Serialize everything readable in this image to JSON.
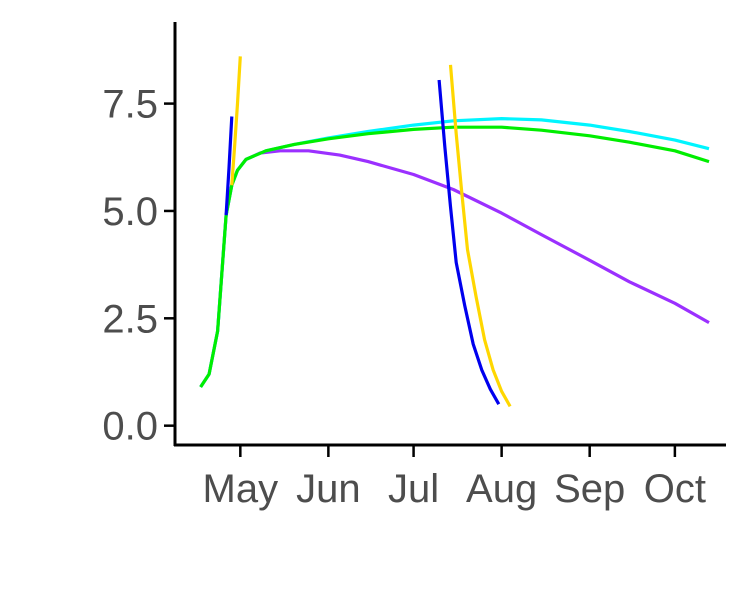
{
  "chart_data": {
    "type": "line",
    "title": "",
    "xlabel": "",
    "ylabel": "",
    "x_ticks": [
      {
        "label": "May",
        "date": "2023-05-01"
      },
      {
        "label": "Jun",
        "date": "2023-06-01"
      },
      {
        "label": "Jul",
        "date": "2023-07-01"
      },
      {
        "label": "Aug",
        "date": "2023-08-01"
      },
      {
        "label": "Sep",
        "date": "2023-09-01"
      },
      {
        "label": "Oct",
        "date": "2023-10-01"
      }
    ],
    "xlim": [
      "2023-04-08",
      "2023-10-19"
    ],
    "y_ticks": [
      0.0,
      2.5,
      5.0,
      7.5
    ],
    "y_tick_labels": [
      "0.0",
      "2.5",
      "5.0",
      "7.5"
    ],
    "ylim": [
      -0.45,
      9.4
    ],
    "grid": false,
    "legend": "none",
    "series": [
      {
        "color": "#9B30FF",
        "points": [
          [
            "2023-04-17",
            0.9
          ],
          [
            "2023-04-20",
            1.2
          ],
          [
            "2023-04-23",
            2.2
          ],
          [
            "2023-04-26",
            4.9
          ],
          [
            "2023-04-28",
            5.6
          ],
          [
            "2023-04-30",
            5.95
          ],
          [
            "2023-05-03",
            6.2
          ],
          [
            "2023-05-08",
            6.35
          ],
          [
            "2023-05-15",
            6.4
          ],
          [
            "2023-05-25",
            6.4
          ],
          [
            "2023-06-05",
            6.3
          ],
          [
            "2023-06-15",
            6.15
          ],
          [
            "2023-07-01",
            5.85
          ],
          [
            "2023-07-15",
            5.5
          ],
          [
            "2023-08-01",
            4.95
          ],
          [
            "2023-08-15",
            4.45
          ],
          [
            "2023-09-01",
            3.85
          ],
          [
            "2023-09-15",
            3.35
          ],
          [
            "2023-10-01",
            2.85
          ],
          [
            "2023-10-13",
            2.4
          ]
        ]
      },
      {
        "color": "#00F5FF",
        "points": [
          [
            "2023-04-17",
            0.9
          ],
          [
            "2023-04-20",
            1.2
          ],
          [
            "2023-04-23",
            2.2
          ],
          [
            "2023-04-26",
            4.9
          ],
          [
            "2023-04-28",
            5.6
          ],
          [
            "2023-04-30",
            5.95
          ],
          [
            "2023-05-03",
            6.2
          ],
          [
            "2023-05-10",
            6.4
          ],
          [
            "2023-05-20",
            6.55
          ],
          [
            "2023-06-01",
            6.7
          ],
          [
            "2023-06-15",
            6.85
          ],
          [
            "2023-07-01",
            7.0
          ],
          [
            "2023-07-15",
            7.1
          ],
          [
            "2023-08-01",
            7.15
          ],
          [
            "2023-08-15",
            7.12
          ],
          [
            "2023-09-01",
            7.0
          ],
          [
            "2023-09-15",
            6.85
          ],
          [
            "2023-10-01",
            6.65
          ],
          [
            "2023-10-13",
            6.45
          ]
        ]
      },
      {
        "color": "#00EE00",
        "points": [
          [
            "2023-04-17",
            0.9
          ],
          [
            "2023-04-20",
            1.2
          ],
          [
            "2023-04-23",
            2.2
          ],
          [
            "2023-04-26",
            4.9
          ],
          [
            "2023-04-28",
            5.6
          ],
          [
            "2023-04-30",
            5.95
          ],
          [
            "2023-05-03",
            6.2
          ],
          [
            "2023-05-10",
            6.4
          ],
          [
            "2023-05-20",
            6.55
          ],
          [
            "2023-06-01",
            6.68
          ],
          [
            "2023-06-15",
            6.8
          ],
          [
            "2023-07-01",
            6.9
          ],
          [
            "2023-07-15",
            6.95
          ],
          [
            "2023-08-01",
            6.95
          ],
          [
            "2023-08-15",
            6.88
          ],
          [
            "2023-09-01",
            6.75
          ],
          [
            "2023-09-15",
            6.6
          ],
          [
            "2023-10-01",
            6.4
          ],
          [
            "2023-10-13",
            6.15
          ]
        ]
      },
      {
        "color": "#0000EE",
        "points": [
          [
            "2023-04-26",
            4.9
          ],
          [
            "2023-04-27",
            6.0
          ],
          [
            "2023-04-28",
            7.2
          ]
        ]
      },
      {
        "color": "#0000EE",
        "points": [
          [
            "2023-07-10",
            8.05
          ],
          [
            "2023-07-12",
            6.5
          ],
          [
            "2023-07-14",
            5.1
          ],
          [
            "2023-07-16",
            3.8
          ],
          [
            "2023-07-19",
            2.8
          ],
          [
            "2023-07-22",
            1.9
          ],
          [
            "2023-07-25",
            1.3
          ],
          [
            "2023-07-28",
            0.85
          ],
          [
            "2023-07-31",
            0.5
          ]
        ]
      },
      {
        "color": "#FFD700",
        "points": [
          [
            "2023-04-28",
            5.6
          ],
          [
            "2023-04-29",
            6.5
          ],
          [
            "2023-04-30",
            7.5
          ],
          [
            "2023-05-01",
            8.6
          ]
        ]
      },
      {
        "color": "#FFD700",
        "points": [
          [
            "2023-07-14",
            8.4
          ],
          [
            "2023-07-16",
            6.8
          ],
          [
            "2023-07-18",
            5.4
          ],
          [
            "2023-07-20",
            4.1
          ],
          [
            "2023-07-23",
            3.0
          ],
          [
            "2023-07-26",
            2.0
          ],
          [
            "2023-07-29",
            1.3
          ],
          [
            "2023-08-01",
            0.8
          ],
          [
            "2023-08-04",
            0.45
          ]
        ]
      }
    ]
  }
}
